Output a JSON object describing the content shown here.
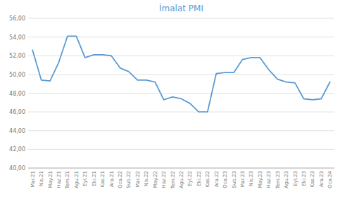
{
  "chart_data": {
    "type": "line",
    "title": "İmalat PMI",
    "categories": [
      "Mar.21",
      "Nis.21",
      "May.21",
      "Haz.21",
      "Tem.21",
      "Agu.21",
      "Eyl.21",
      "Eki.21",
      "Kas.21",
      "Ara.21",
      "Oca.22",
      "Sub.22",
      "Mar.22",
      "Nis.22",
      "May.22",
      "Haz.22",
      "Tem.22",
      "Agu.22",
      "Eyl.22",
      "Eki.22",
      "Kas.22",
      "Ara.22",
      "Oca.23",
      "Sub.23",
      "Mar.23",
      "Nis.23",
      "May.23",
      "Haz.23",
      "Tem.23",
      "Agu.23",
      "Eyl.23",
      "Eki.23",
      "Kas.23",
      "Ara.23",
      "Oca.24"
    ],
    "values": [
      52.6,
      49.4,
      49.3,
      51.3,
      54.1,
      54.1,
      51.8,
      52.1,
      52.1,
      52.0,
      50.7,
      50.3,
      49.4,
      49.4,
      49.2,
      47.3,
      47.6,
      47.4,
      46.9,
      46.0,
      46.0,
      50.1,
      50.2,
      50.2,
      51.6,
      51.8,
      51.8,
      50.5,
      49.5,
      49.2,
      49.1,
      47.4,
      47.3,
      47.4,
      49.2
    ],
    "color": "#5b9bd5",
    "ylim": [
      40,
      56
    ],
    "yticks": [
      {
        "value": 40.0,
        "label": "40,00"
      },
      {
        "value": 42.0,
        "label": "42,00"
      },
      {
        "value": 44.0,
        "label": "44,00"
      },
      {
        "value": 46.0,
        "label": "46,00"
      },
      {
        "value": 48.0,
        "label": "48,00"
      },
      {
        "value": 50.0,
        "label": "50,00"
      },
      {
        "value": 52.0,
        "label": "52,00"
      },
      {
        "value": 54.0,
        "label": "54,00"
      },
      {
        "value": 56.0,
        "label": "56,00"
      }
    ],
    "grid": true
  }
}
